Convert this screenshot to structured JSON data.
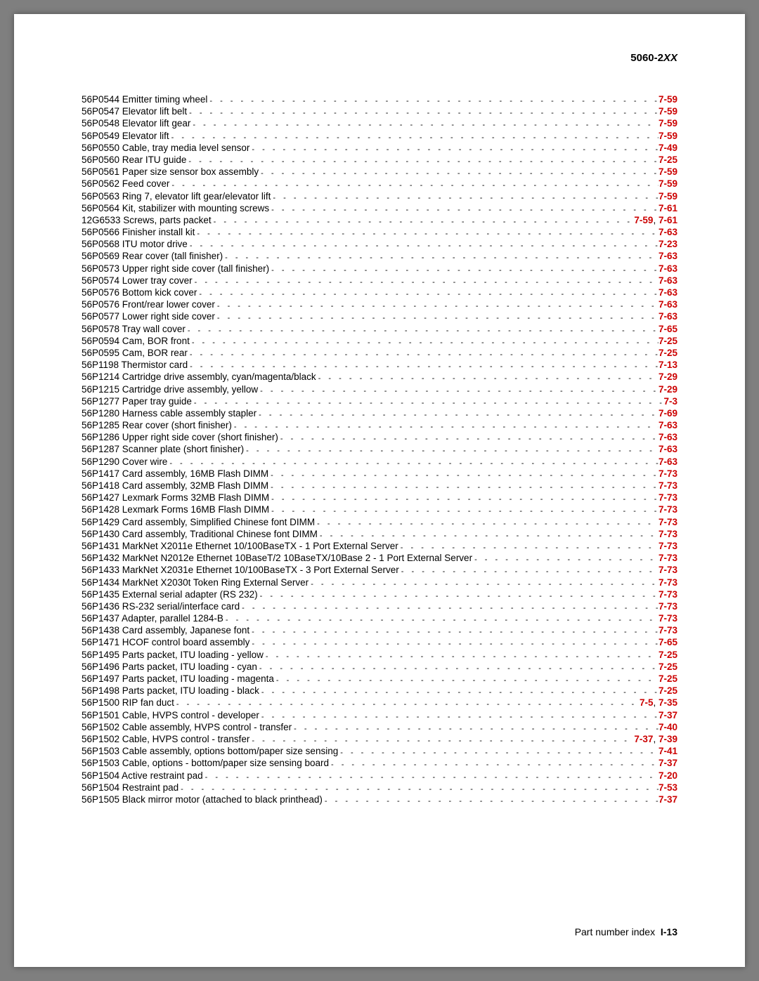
{
  "header": {
    "model_prefix": "5060-2",
    "model_suffix": "XX"
  },
  "entries": [
    {
      "pn": "56P0544",
      "desc": "Emitter timing wheel",
      "refs": [
        "7-59"
      ]
    },
    {
      "pn": "56P0547",
      "desc": "Elevator lift belt",
      "refs": [
        "7-59"
      ]
    },
    {
      "pn": "56P0548",
      "desc": "Elevator lift gear",
      "refs": [
        "7-59"
      ]
    },
    {
      "pn": "56P0549",
      "desc": "Elevator lift",
      "refs": [
        "7-59"
      ]
    },
    {
      "pn": "56P0550",
      "desc": "Cable, tray media level sensor",
      "refs": [
        "7-49"
      ]
    },
    {
      "pn": "56P0560",
      "desc": "Rear ITU guide",
      "refs": [
        "7-25"
      ]
    },
    {
      "pn": "56P0561",
      "desc": "Paper size sensor box assembly",
      "refs": [
        "7-59"
      ]
    },
    {
      "pn": "56P0562",
      "desc": "Feed cover",
      "refs": [
        "7-59"
      ]
    },
    {
      "pn": "56P0563",
      "desc": "Ring 7, elevator lift gear/elevator lift",
      "refs": [
        "7-59"
      ]
    },
    {
      "pn": "56P0564",
      "desc": "Kit, stabilizer with mounting screws",
      "refs": [
        "7-61"
      ]
    },
    {
      "pn": "12G6533",
      "desc": "Screws, parts packet",
      "refs": [
        "7-59",
        "7-61"
      ]
    },
    {
      "pn": "56P0566",
      "desc": "Finisher install kit",
      "refs": [
        "7-63"
      ]
    },
    {
      "pn": "56P0568",
      "desc": "ITU motor drive",
      "refs": [
        "7-23"
      ]
    },
    {
      "pn": "56P0569",
      "desc": "Rear cover (tall finisher)",
      "refs": [
        "7-63"
      ]
    },
    {
      "pn": "56P0573",
      "desc": "Upper right side cover (tall finisher)",
      "refs": [
        "7-63"
      ]
    },
    {
      "pn": "56P0574",
      "desc": "Lower tray cover",
      "refs": [
        "7-63"
      ]
    },
    {
      "pn": "56P0576",
      "desc": "Bottom kick cover",
      "refs": [
        "7-63"
      ]
    },
    {
      "pn": "56P0576",
      "desc": "Front/rear lower cover",
      "refs": [
        "7-63"
      ]
    },
    {
      "pn": "56P0577",
      "desc": "Lower right side cover",
      "refs": [
        "7-63"
      ]
    },
    {
      "pn": "56P0578",
      "desc": "Tray wall cover",
      "refs": [
        "7-65"
      ]
    },
    {
      "pn": "56P0594",
      "desc": "Cam, BOR front",
      "refs": [
        "7-25"
      ]
    },
    {
      "pn": "56P0595",
      "desc": "Cam, BOR rear",
      "refs": [
        "7-25"
      ]
    },
    {
      "pn": "56P1198",
      "desc": "Thermistor card",
      "refs": [
        "7-13"
      ]
    },
    {
      "pn": "56P1214",
      "desc": "Cartridge drive assembly, cyan/magenta/black",
      "refs": [
        "7-29"
      ]
    },
    {
      "pn": "56P1215",
      "desc": "Cartridge drive assembly, yellow",
      "refs": [
        "7-29"
      ]
    },
    {
      "pn": "56P1277",
      "desc": "Paper tray guide",
      "refs": [
        "7-3"
      ]
    },
    {
      "pn": "56P1280",
      "desc": "Harness cable assembly stapler",
      "refs": [
        "7-69"
      ]
    },
    {
      "pn": "56P1285",
      "desc": "Rear cover (short finisher)",
      "refs": [
        "7-63"
      ]
    },
    {
      "pn": "56P1286",
      "desc": "Upper right side cover (short finisher)",
      "refs": [
        "7-63"
      ]
    },
    {
      "pn": "56P1287",
      "desc": "Scanner plate (short finisher)",
      "refs": [
        "7-63"
      ]
    },
    {
      "pn": "56P1290",
      "desc": "Cover wire",
      "refs": [
        "7-63"
      ]
    },
    {
      "pn": "56P1417",
      "desc": "Card assembly, 16MB Flash DIMM",
      "refs": [
        "7-73"
      ]
    },
    {
      "pn": "56P1418",
      "desc": "Card assembly, 32MB Flash DIMM",
      "refs": [
        "7-73"
      ]
    },
    {
      "pn": "56P1427",
      "desc": "Lexmark Forms 32MB Flash DIMM",
      "refs": [
        "7-73"
      ]
    },
    {
      "pn": "56P1428",
      "desc": "Lexmark Forms 16MB Flash DIMM",
      "refs": [
        "7-73"
      ]
    },
    {
      "pn": "56P1429",
      "desc": "Card assembly, Simplified Chinese font DIMM",
      "refs": [
        "7-73"
      ]
    },
    {
      "pn": "56P1430",
      "desc": "Card assembly, Traditional Chinese font DIMM",
      "refs": [
        "7-73"
      ]
    },
    {
      "pn": "56P1431",
      "desc": "MarkNet X2011e Ethernet 10/100BaseTX - 1 Port External Server",
      "refs": [
        "7-73"
      ]
    },
    {
      "pn": "56P1432",
      "desc": "MarkNet N2012e Ethernet 10BaseT/2 10BaseTX/10Base 2 - 1 Port External Server",
      "refs": [
        "7-73"
      ]
    },
    {
      "pn": "56P1433",
      "desc": "MarkNet X2031e Ethernet 10/100BaseTX - 3 Port External Server",
      "refs": [
        "7-73"
      ]
    },
    {
      "pn": "56P1434",
      "desc": "MarkNet X2030t Token Ring External Server",
      "refs": [
        "7-73"
      ]
    },
    {
      "pn": "56P1435",
      "desc": "External serial adapter (RS 232)",
      "refs": [
        "7-73"
      ]
    },
    {
      "pn": "56P1436",
      "desc": "RS-232 serial/interface card",
      "refs": [
        "7-73"
      ]
    },
    {
      "pn": "56P1437",
      "desc": "Adapter, parallel 1284-B",
      "refs": [
        "7-73"
      ]
    },
    {
      "pn": "56P1438",
      "desc": "Card assembly, Japanese font",
      "refs": [
        "7-73"
      ]
    },
    {
      "pn": "56P1471",
      "desc": "HCOF control board assembly",
      "refs": [
        "7-65"
      ]
    },
    {
      "pn": "56P1495",
      "desc": "Parts packet, ITU loading - yellow",
      "refs": [
        "7-25"
      ]
    },
    {
      "pn": "56P1496",
      "desc": "Parts packet, ITU loading - cyan",
      "refs": [
        "7-25"
      ]
    },
    {
      "pn": "56P1497",
      "desc": "Parts packet, ITU loading - magenta",
      "refs": [
        "7-25"
      ]
    },
    {
      "pn": "56P1498",
      "desc": "Parts packet, ITU loading - black",
      "refs": [
        "7-25"
      ]
    },
    {
      "pn": "56P1500",
      "desc": "RIP fan duct",
      "refs": [
        "7-5",
        "7-35"
      ]
    },
    {
      "pn": "56P1501",
      "desc": "Cable, HVPS control - developer",
      "refs": [
        "7-37"
      ]
    },
    {
      "pn": "56P1502",
      "desc": "Cable assembly, HVPS control - transfer",
      "refs": [
        "7-40"
      ]
    },
    {
      "pn": "56P1502",
      "desc": "Cable, HVPS control - transfer",
      "refs": [
        "7-37",
        "7-39"
      ]
    },
    {
      "pn": "56P1503",
      "desc": "Cable assembly, options bottom/paper size sensing",
      "refs": [
        "7-41"
      ]
    },
    {
      "pn": "56P1503",
      "desc": "Cable, options - bottom/paper size sensing board",
      "refs": [
        "7-37"
      ]
    },
    {
      "pn": "56P1504",
      "desc": "Active restraint pad",
      "refs": [
        "7-20"
      ]
    },
    {
      "pn": "56P1504",
      "desc": "Restraint pad",
      "refs": [
        "7-53"
      ]
    },
    {
      "pn": "56P1505",
      "desc": "Black mirror motor (attached to black printhead)",
      "refs": [
        "7-37"
      ]
    }
  ],
  "footer": {
    "label": "Part number index",
    "page": "I-13"
  },
  "colors": {
    "ref_color": "#cc0000",
    "text_color": "#000000",
    "bg": "#ffffff",
    "outer_bg": "#7f7f7f"
  }
}
